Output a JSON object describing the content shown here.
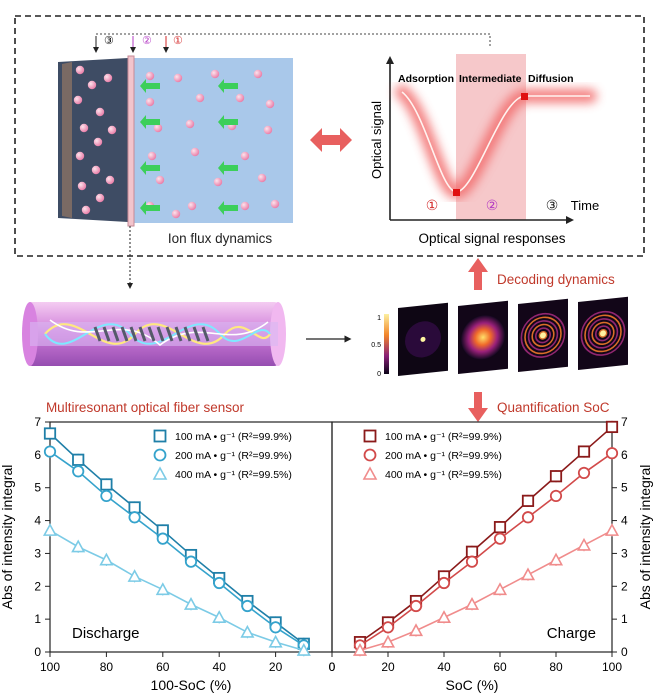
{
  "top": {
    "markers": [
      "③",
      "②",
      "①"
    ],
    "ion_flux_label": "Ion flux dynamics",
    "signal_ylabel": "Optical signal",
    "signal_xlabel": "Time",
    "phases": [
      "Adsorption",
      "Intermediate",
      "Diffusion"
    ],
    "phase_markers": [
      "①",
      "②",
      "③"
    ],
    "signal_caption": "Optical signal responses"
  },
  "middle": {
    "sensor_label": "Multiresonant optical fiber sensor",
    "decoding_label": "Decoding dynamics",
    "quant_label": "Quantification SoC",
    "colorbar_ticks": [
      "1",
      "0.5",
      "0"
    ]
  },
  "colors": {
    "red_arrow": "#e8605f",
    "blue_dark": "#1f7fa8",
    "blue_mid": "#35a3cc",
    "blue_light": "#7ccbe6",
    "red_dark": "#8b1a1a",
    "red_mid": "#d24a4a",
    "red_light": "#f08c8c"
  },
  "chart_data": [
    {
      "type": "line",
      "panel_label": "Discharge",
      "xlabel": "100-SoC (%)",
      "ylabel": "Abs of intensity integral",
      "xlim": [
        100,
        0
      ],
      "ylim": [
        0,
        7
      ],
      "xticks": [
        100,
        80,
        60,
        40,
        20,
        0
      ],
      "yticks": [
        0,
        1,
        2,
        3,
        4,
        5,
        6,
        7
      ],
      "series": [
        {
          "name": "100 mA • g⁻¹ (R²=99.9%)",
          "marker": "square",
          "color": "#1f7fa8",
          "x": [
            100,
            90,
            80,
            70,
            60,
            50,
            40,
            30,
            20,
            10
          ],
          "y": [
            6.65,
            5.85,
            5.1,
            4.4,
            3.7,
            2.95,
            2.25,
            1.55,
            0.9,
            0.25
          ]
        },
        {
          "name": "200 mA • g⁻¹ (R²=99.9%)",
          "marker": "circle",
          "color": "#35a3cc",
          "x": [
            100,
            90,
            80,
            70,
            60,
            50,
            40,
            30,
            20,
            10
          ],
          "y": [
            6.1,
            5.5,
            4.75,
            4.1,
            3.45,
            2.75,
            2.1,
            1.4,
            0.75,
            0.2
          ]
        },
        {
          "name": "400 mA • g⁻¹ (R²=99.5%)",
          "marker": "triangle",
          "color": "#7ccbe6",
          "x": [
            100,
            90,
            80,
            70,
            60,
            50,
            40,
            30,
            20,
            10
          ],
          "y": [
            3.7,
            3.2,
            2.8,
            2.3,
            1.9,
            1.45,
            1.05,
            0.6,
            0.3,
            0.05
          ]
        }
      ]
    },
    {
      "type": "line",
      "panel_label": "Charge",
      "xlabel": "SoC (%)",
      "ylabel": "Abs of intensity integral",
      "xlim": [
        0,
        100
      ],
      "ylim": [
        0,
        7
      ],
      "xticks": [
        0,
        20,
        40,
        60,
        80,
        100
      ],
      "yticks": [
        0,
        1,
        2,
        3,
        4,
        5,
        6,
        7
      ],
      "series": [
        {
          "name": "100 mA • g⁻¹ (R²=99.9%)",
          "marker": "square",
          "color": "#8b1a1a",
          "x": [
            10,
            20,
            30,
            40,
            50,
            60,
            70,
            80,
            90,
            100
          ],
          "y": [
            0.3,
            0.9,
            1.55,
            2.3,
            3.05,
            3.8,
            4.6,
            5.35,
            6.1,
            6.85
          ]
        },
        {
          "name": "200 mA • g⁻¹ (R²=99.9%)",
          "marker": "circle",
          "color": "#d24a4a",
          "x": [
            10,
            20,
            30,
            40,
            50,
            60,
            70,
            80,
            90,
            100
          ],
          "y": [
            0.2,
            0.75,
            1.4,
            2.1,
            2.75,
            3.45,
            4.1,
            4.75,
            5.45,
            6.05
          ]
        },
        {
          "name": "400 mA • g⁻¹ (R²=99.5%)",
          "marker": "triangle",
          "color": "#f08c8c",
          "x": [
            10,
            20,
            30,
            40,
            50,
            60,
            70,
            80,
            90,
            100
          ],
          "y": [
            0.05,
            0.3,
            0.65,
            1.05,
            1.45,
            1.9,
            2.35,
            2.8,
            3.25,
            3.7
          ]
        }
      ]
    }
  ]
}
